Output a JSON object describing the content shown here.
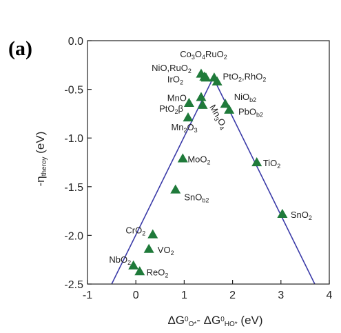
{
  "panel_label": "(a)",
  "chart_data": {
    "type": "scatter",
    "xlim": [
      -1,
      4
    ],
    "ylim": [
      -2.5,
      0.0
    ],
    "xticks": [
      -1,
      0,
      1,
      2,
      3,
      4
    ],
    "yticks": [
      0.0,
      -0.5,
      -1.0,
      -1.5,
      -2.0,
      -2.5
    ],
    "xtick_labels": [
      "-1",
      "0",
      "1",
      "2",
      "3",
      "4"
    ],
    "ytick_labels": [
      "0.0",
      "-0.5",
      "-1.0",
      "-1.5",
      "-2.0",
      "-2.5"
    ],
    "grid": false,
    "xlabel": {
      "parts": [
        {
          "t": "ΔG",
          "s": "base"
        },
        {
          "t": "0",
          "s": "sup"
        },
        {
          "t": "O*",
          "s": "sub"
        },
        {
          "t": "- ΔG",
          "s": "base"
        },
        {
          "t": "0",
          "s": "sup"
        },
        {
          "t": "HO*",
          "s": "sub"
        },
        {
          "t": " (eV)",
          "s": "base"
        }
      ]
    },
    "ylabel": {
      "parts": [
        {
          "t": "-η",
          "s": "base"
        },
        {
          "t": "theroy",
          "s": "sub"
        },
        {
          "t": " (eV)",
          "s": "base"
        }
      ]
    },
    "marker_color": "#1f7a3a",
    "line_color": "#3a3aa8",
    "volcano_lines": [
      {
        "x": [
          -0.5,
          1.6
        ],
        "y": [
          -2.5,
          -0.38
        ]
      },
      {
        "x": [
          1.6,
          3.7
        ],
        "y": [
          -0.38,
          -2.5
        ]
      }
    ],
    "points": [
      {
        "x": 1.35,
        "y": -0.34
      },
      {
        "x": 1.42,
        "y": -0.37
      },
      {
        "x": 1.45,
        "y": -0.38
      },
      {
        "x": 1.62,
        "y": -0.38
      },
      {
        "x": 1.68,
        "y": -0.42
      },
      {
        "x": 1.35,
        "y": -0.58
      },
      {
        "x": 1.1,
        "y": -0.64
      },
      {
        "x": 1.38,
        "y": -0.66
      },
      {
        "x": 1.85,
        "y": -0.65
      },
      {
        "x": 1.93,
        "y": -0.71
      },
      {
        "x": 1.08,
        "y": -0.79
      },
      {
        "x": 0.97,
        "y": -1.21
      },
      {
        "x": 2.5,
        "y": -1.25
      },
      {
        "x": 0.82,
        "y": -1.53
      },
      {
        "x": 3.03,
        "y": -1.78
      },
      {
        "x": 0.35,
        "y": -1.99
      },
      {
        "x": 0.27,
        "y": -2.14
      },
      {
        "x": -0.05,
        "y": -2.31
      },
      {
        "x": 0.08,
        "y": -2.37
      }
    ],
    "annotations": [
      {
        "x": 1.4,
        "y": -0.17,
        "anchor": "middle",
        "rotate": 0,
        "parts": [
          {
            "t": "Co",
            "s": "base"
          },
          {
            "t": "3",
            "s": "sub"
          },
          {
            "t": "O",
            "s": "base"
          },
          {
            "t": "4",
            "s": "sub"
          },
          {
            "t": "RuO",
            "s": "base"
          },
          {
            "t": "2",
            "s": "sub"
          }
        ]
      },
      {
        "x": 1.15,
        "y": -0.31,
        "anchor": "end",
        "rotate": 0,
        "parts": [
          {
            "t": "NiO,RuO",
            "s": "base"
          },
          {
            "t": "2",
            "s": "sub"
          }
        ]
      },
      {
        "x": 0.98,
        "y": -0.43,
        "anchor": "end",
        "rotate": 0,
        "parts": [
          {
            "t": "IrO",
            "s": "base"
          },
          {
            "t": "2",
            "s": "sub"
          }
        ]
      },
      {
        "x": 1.8,
        "y": -0.4,
        "anchor": "start",
        "rotate": 0,
        "parts": [
          {
            "t": "PtO",
            "s": "base"
          },
          {
            "t": "2",
            "s": "sub"
          },
          {
            "t": ",RhO",
            "s": "base"
          },
          {
            "t": "2",
            "s": "sub"
          }
        ]
      },
      {
        "x": 1.05,
        "y": -0.62,
        "anchor": "end",
        "rotate": 0,
        "parts": [
          {
            "t": "MnO",
            "s": "base"
          }
        ]
      },
      {
        "x": 2.03,
        "y": -0.61,
        "anchor": "start",
        "rotate": 0,
        "parts": [
          {
            "t": "NiO",
            "s": "base"
          },
          {
            "t": "b2",
            "s": "sub"
          }
        ]
      },
      {
        "x": 0.98,
        "y": -0.73,
        "anchor": "end",
        "rotate": 0,
        "parts": [
          {
            "t": "PtO",
            "s": "base"
          },
          {
            "t": "2",
            "s": "sub"
          },
          {
            "t": "β",
            "s": "base"
          }
        ]
      },
      {
        "x": 2.12,
        "y": -0.76,
        "anchor": "start",
        "rotate": 0,
        "parts": [
          {
            "t": "PbO",
            "s": "base"
          },
          {
            "t": "b2",
            "s": "sub"
          }
        ]
      },
      {
        "x": 1.52,
        "y": -0.68,
        "anchor": "start",
        "rotate": 60,
        "parts": [
          {
            "t": "Mn",
            "s": "base"
          },
          {
            "t": "3",
            "s": "sub"
          },
          {
            "t": "O",
            "s": "base"
          },
          {
            "t": "4",
            "s": "sub"
          }
        ]
      },
      {
        "x": 0.73,
        "y": -0.92,
        "anchor": "start",
        "rotate": 0,
        "parts": [
          {
            "t": "Mn",
            "s": "base"
          },
          {
            "t": "2",
            "s": "sub"
          },
          {
            "t": "O",
            "s": "base"
          },
          {
            "t": "3",
            "s": "sub"
          }
        ]
      },
      {
        "x": 1.07,
        "y": -1.25,
        "anchor": "start",
        "rotate": 0,
        "parts": [
          {
            "t": "MoO",
            "s": "base"
          },
          {
            "t": "2",
            "s": "sub"
          }
        ]
      },
      {
        "x": 2.63,
        "y": -1.29,
        "anchor": "start",
        "rotate": 0,
        "parts": [
          {
            "t": "TiO",
            "s": "base"
          },
          {
            "t": "2",
            "s": "sub"
          }
        ]
      },
      {
        "x": 1.0,
        "y": -1.64,
        "anchor": "start",
        "rotate": 0,
        "parts": [
          {
            "t": "SnO",
            "s": "base"
          },
          {
            "t": "b2",
            "s": "sub"
          }
        ]
      },
      {
        "x": 3.2,
        "y": -1.82,
        "anchor": "start",
        "rotate": 0,
        "parts": [
          {
            "t": "SnO",
            "s": "base"
          },
          {
            "t": "2",
            "s": "sub"
          }
        ]
      },
      {
        "x": 0.2,
        "y": -1.98,
        "anchor": "end",
        "rotate": 0,
        "parts": [
          {
            "t": "CrO",
            "s": "base"
          },
          {
            "t": "2",
            "s": "sub"
          }
        ]
      },
      {
        "x": 0.45,
        "y": -2.18,
        "anchor": "start",
        "rotate": 0,
        "parts": [
          {
            "t": "VO",
            "s": "base"
          },
          {
            "t": "2",
            "s": "sub"
          }
        ]
      },
      {
        "x": -0.1,
        "y": -2.28,
        "anchor": "end",
        "rotate": 0,
        "parts": [
          {
            "t": "NbO",
            "s": "base"
          },
          {
            "t": "2",
            "s": "sub"
          }
        ]
      },
      {
        "x": 0.22,
        "y": -2.41,
        "anchor": "start",
        "rotate": 0,
        "parts": [
          {
            "t": "ReO",
            "s": "base"
          },
          {
            "t": "2",
            "s": "sub"
          }
        ]
      }
    ]
  }
}
